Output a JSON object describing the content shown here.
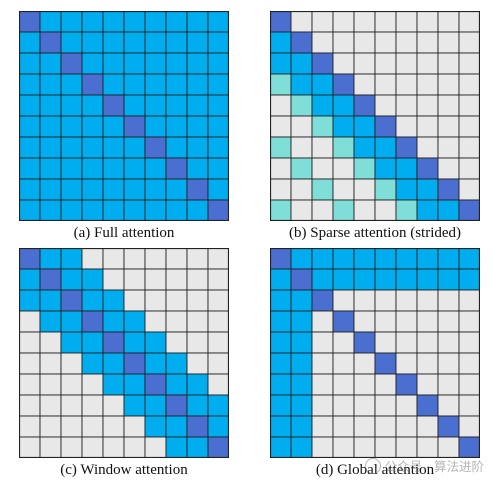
{
  "colors": {
    "full": "#00adef",
    "diagonal": "#4a6fd0",
    "stride": "#7fded8",
    "empty": "#e8e8e8",
    "grid": "#222222"
  },
  "panels": [
    {
      "id": "full",
      "caption": "(a) Full attention"
    },
    {
      "id": "sparse",
      "caption": "(b) Sparse attention (strided)"
    },
    {
      "id": "window",
      "caption": "(c) Window attention"
    },
    {
      "id": "global",
      "caption": "(d) Global attention"
    }
  ],
  "watermark": {
    "text": "公众号 · 算法进阶",
    "icon": "wechat-logo-icon"
  }
}
